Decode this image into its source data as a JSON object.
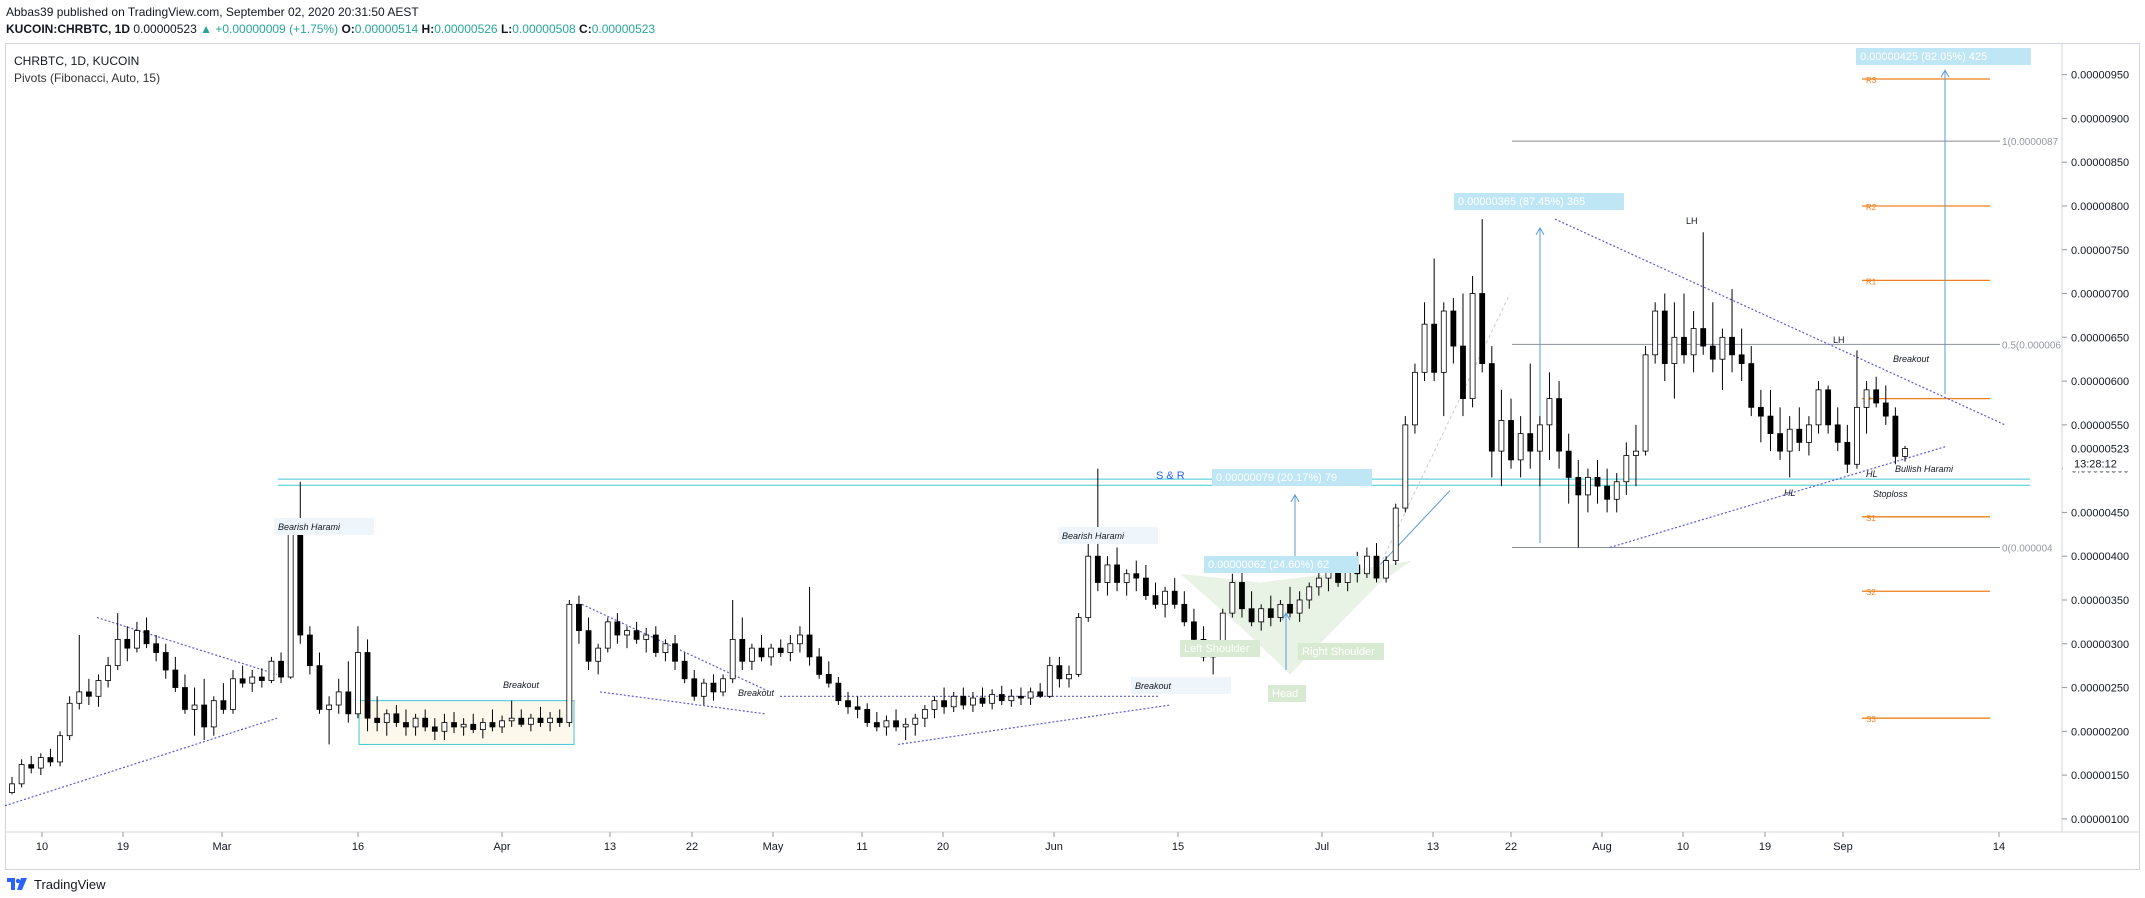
{
  "header": {
    "published": "Abbas39 published on TradingView.com, September 02, 2020 20:31:50 AEST",
    "symbol": "KUCOIN:CHRBTC, 1D",
    "last": "0.00000523",
    "change": "+0.00000009 (+1.75%)",
    "o_label": "O:",
    "o": "0.00000514",
    "h_label": "H:",
    "h": "0.00000526",
    "l_label": "L:",
    "l": "0.00000508",
    "c_label": "C:",
    "c": "0.00000523"
  },
  "legend": {
    "title": "CHRBTC, 1D, KUCOIN",
    "indicator": "Pivots (Fibonacci, Auto, 15)"
  },
  "footer": {
    "brand": "TradingView"
  },
  "colors": {
    "up": "#ffffff",
    "down": "#000000",
    "trendline": "#5b5bd6",
    "pivot": "#ef7f1a",
    "sr": "#3fc9d4",
    "measure": "#5a9bd6",
    "fib": "#8a8e98"
  },
  "chart_data": {
    "type": "candlestick",
    "x_tick_labels": [
      "10",
      "19",
      "Mar",
      "16",
      "Apr",
      "13",
      "22",
      "May",
      "11",
      "20",
      "Jun",
      "15",
      "Jul",
      "13",
      "22",
      "Aug",
      "10",
      "19",
      "Sep",
      "14"
    ],
    "y_tick_labels": [
      "0.00000950",
      "0.00000900",
      "0.00000850",
      "0.00000800",
      "0.00000750",
      "0.00000700",
      "0.00000650",
      "0.00000600",
      "0.00000550",
      "0.00000500",
      "0.00000450",
      "0.00000400",
      "0.00000350",
      "0.00000300",
      "0.00000250",
      "0.00000200",
      "0.00000150",
      "0.00000100"
    ],
    "last_price_label": "0.00000523",
    "countdown_label": "13:28:12",
    "ylim": [
      8.5e-07,
      9.85e-06
    ],
    "pivots": [
      {
        "name": "R3",
        "value": 9.45e-06
      },
      {
        "name": "R2",
        "value": 8e-06
      },
      {
        "name": "R1",
        "value": 7.15e-06
      },
      {
        "name": "P",
        "value": 5.8e-06
      },
      {
        "name": "S1",
        "value": 4.45e-06
      },
      {
        "name": "S2",
        "value": 3.6e-06
      },
      {
        "name": "S3",
        "value": 2.15e-06
      }
    ],
    "fib_levels": [
      {
        "label": "1(0.0000087",
        "value": 8.74e-06
      },
      {
        "label": "0.5(0.000006",
        "value": 6.42e-06
      },
      {
        "label": "0(0.000004",
        "value": 4.1e-06
      }
    ],
    "annotations": [
      "Bearish Harami",
      "Breakout",
      "Breakout",
      "Bearish Harami",
      "Breakout",
      "S & R",
      "0.00000079 (20.17%) 79",
      "0.00000062 (24.60%) 62",
      "Left Shoulder",
      "Right Shoulder",
      "Head",
      "0.00000365 (87.45%) 365",
      "0.00000425 (82.05%) 425",
      "LH",
      "LH",
      "HL",
      "HL",
      "Breakout",
      "Bullish Harami",
      "Stoploss"
    ],
    "candles": [
      [
        1.3e-06,
        1.48e-06,
        1.28e-06,
        1.4e-06
      ],
      [
        1.4e-06,
        1.68e-06,
        1.36e-06,
        1.62e-06
      ],
      [
        1.62e-06,
        1.72e-06,
        1.52e-06,
        1.58e-06
      ],
      [
        1.58e-06,
        1.75e-06,
        1.5e-06,
        1.7e-06
      ],
      [
        1.7e-06,
        1.8e-06,
        1.6e-06,
        1.65e-06
      ],
      [
        1.65e-06,
        2e-06,
        1.6e-06,
        1.95e-06
      ],
      [
        1.95e-06,
        2.4e-06,
        1.9e-06,
        2.32e-06
      ],
      [
        2.32e-06,
        3.1e-06,
        2.25e-06,
        2.45e-06
      ],
      [
        2.45e-06,
        2.6e-06,
        2.3e-06,
        2.4e-06
      ],
      [
        2.4e-06,
        2.65e-06,
        2.28e-06,
        2.58e-06
      ],
      [
        2.58e-06,
        2.85e-06,
        2.5e-06,
        2.75e-06
      ],
      [
        2.75e-06,
        3.35e-06,
        2.7e-06,
        3.05e-06
      ],
      [
        3.05e-06,
        3.2e-06,
        2.8e-06,
        2.95e-06
      ],
      [
        2.95e-06,
        3.25e-06,
        2.9e-06,
        3.15e-06
      ],
      [
        3.15e-06,
        3.3e-06,
        2.95e-06,
        3e-06
      ],
      [
        3e-06,
        3.1e-06,
        2.8e-06,
        2.9e-06
      ],
      [
        2.9e-06,
        3e-06,
        2.6e-06,
        2.7e-06
      ],
      [
        2.7e-06,
        2.85e-06,
        2.45e-06,
        2.5e-06
      ],
      [
        2.5e-06,
        2.65e-06,
        2.2e-06,
        2.25e-06
      ],
      [
        2.25e-06,
        2.5e-06,
        1.95e-06,
        2.3e-06
      ],
      [
        2.3e-06,
        2.6e-06,
        1.9e-06,
        2.05e-06
      ],
      [
        2.05e-06,
        2.4e-06,
        1.95e-06,
        2.35e-06
      ],
      [
        2.35e-06,
        2.55e-06,
        2.2e-06,
        2.25e-06
      ],
      [
        2.25e-06,
        2.7e-06,
        2.2e-06,
        2.6e-06
      ],
      [
        2.6e-06,
        2.75e-06,
        2.5e-06,
        2.55e-06
      ],
      [
        2.55e-06,
        2.7e-06,
        2.45e-06,
        2.62e-06
      ],
      [
        2.62e-06,
        2.72e-06,
        2.5e-06,
        2.58e-06
      ],
      [
        2.58e-06,
        2.85e-06,
        2.55e-06,
        2.8e-06
      ],
      [
        2.8e-06,
        2.9e-06,
        2.55e-06,
        2.62e-06
      ],
      [
        2.62e-06,
        4.35e-06,
        2.6e-06,
        4.3e-06
      ],
      [
        4.3e-06,
        4.85e-06,
        3e-06,
        3.1e-06
      ],
      [
        3.1e-06,
        3.2e-06,
        2.65e-06,
        2.75e-06
      ],
      [
        2.75e-06,
        2.9e-06,
        2.2e-06,
        2.25e-06
      ],
      [
        2.25e-06,
        2.4e-06,
        1.85e-06,
        2.3e-06
      ],
      [
        2.3e-06,
        2.6e-06,
        2.2e-06,
        2.45e-06
      ],
      [
        2.45e-06,
        2.8e-06,
        2.1e-06,
        2.2e-06
      ],
      [
        2.2e-06,
        3.2e-06,
        2.15e-06,
        2.9e-06
      ],
      [
        2.9e-06,
        3.05e-06,
        2e-06,
        2.15e-06
      ],
      [
        2.15e-06,
        2.4e-06,
        2e-06,
        2.1e-06
      ],
      [
        2.1e-06,
        2.25e-06,
        1.95e-06,
        2.2e-06
      ],
      [
        2.2e-06,
        2.3e-06,
        2.05e-06,
        2.1e-06
      ],
      [
        2.1e-06,
        2.25e-06,
        1.95e-06,
        2.05e-06
      ],
      [
        2.05e-06,
        2.2e-06,
        1.95e-06,
        2.15e-06
      ],
      [
        2.15e-06,
        2.25e-06,
        2e-06,
        2.05e-06
      ],
      [
        2.05e-06,
        2.15e-06,
        1.9e-06,
        2e-06
      ],
      [
        2e-06,
        2.2e-06,
        1.9e-06,
        2.1e-06
      ],
      [
        2.1e-06,
        2.22e-06,
        1.98e-06,
        2.05e-06
      ],
      [
        2.05e-06,
        2.15e-06,
        1.95e-06,
        2.08e-06
      ],
      [
        2.08e-06,
        2.2e-06,
        1.98e-06,
        2.02e-06
      ],
      [
        2.02e-06,
        2.15e-06,
        1.92e-06,
        2.1e-06
      ],
      [
        2.1e-06,
        2.25e-06,
        2e-06,
        2.05e-06
      ],
      [
        2.05e-06,
        2.18e-06,
        1.98e-06,
        2.12e-06
      ],
      [
        2.12e-06,
        2.35e-06,
        2.05e-06,
        2.15e-06
      ],
      [
        2.15e-06,
        2.25e-06,
        2.05e-06,
        2.08e-06
      ],
      [
        2.08e-06,
        2.2e-06,
        2e-06,
        2.15e-06
      ],
      [
        2.15e-06,
        2.28e-06,
        2.05e-06,
        2.1e-06
      ],
      [
        2.1e-06,
        2.22e-06,
        2e-06,
        2.15e-06
      ],
      [
        2.15e-06,
        2.25e-06,
        2.05e-06,
        2.1e-06
      ],
      [
        2.1e-06,
        3.5e-06,
        2.05e-06,
        3.45e-06
      ],
      [
        3.45e-06,
        3.55e-06,
        3e-06,
        3.15e-06
      ],
      [
        3.15e-06,
        3.3e-06,
        2.7e-06,
        2.8e-06
      ],
      [
        2.8e-06,
        3e-06,
        2.65e-06,
        2.95e-06
      ],
      [
        2.95e-06,
        3.3e-06,
        2.9e-06,
        3.25e-06
      ],
      [
        3.25e-06,
        3.35e-06,
        3e-06,
        3.1e-06
      ],
      [
        3.1e-06,
        3.2e-06,
        2.95e-06,
        3.15e-06
      ],
      [
        3.15e-06,
        3.25e-06,
        3e-06,
        3.05e-06
      ],
      [
        3.05e-06,
        3.18e-06,
        2.9e-06,
        3.1e-06
      ],
      [
        3.1e-06,
        3.2e-06,
        2.85e-06,
        2.9e-06
      ],
      [
        2.9e-06,
        3.05e-06,
        2.8e-06,
        3e-06
      ],
      [
        3e-06,
        3.1e-06,
        2.7e-06,
        2.8e-06
      ],
      [
        2.8e-06,
        2.9e-06,
        2.55e-06,
        2.6e-06
      ],
      [
        2.6e-06,
        2.7e-06,
        2.35e-06,
        2.4e-06
      ],
      [
        2.4e-06,
        2.6e-06,
        2.3e-06,
        2.55e-06
      ],
      [
        2.55e-06,
        2.65e-06,
        2.35e-06,
        2.45e-06
      ],
      [
        2.45e-06,
        2.65e-06,
        2.4e-06,
        2.6e-06
      ],
      [
        2.6e-06,
        3.5e-06,
        2.55e-06,
        3.05e-06
      ],
      [
        3.05e-06,
        3.3e-06,
        2.7e-06,
        2.8e-06
      ],
      [
        2.8e-06,
        3e-06,
        2.7e-06,
        2.95e-06
      ],
      [
        2.95e-06,
        3.1e-06,
        2.8e-06,
        2.85e-06
      ],
      [
        2.85e-06,
        3e-06,
        2.75e-06,
        2.95e-06
      ],
      [
        2.95e-06,
        3.05e-06,
        2.85e-06,
        2.9e-06
      ],
      [
        2.9e-06,
        3.1e-06,
        2.8e-06,
        3e-06
      ],
      [
        3e-06,
        3.2e-06,
        2.9e-06,
        3.1e-06
      ],
      [
        3.1e-06,
        3.65e-06,
        2.75e-06,
        2.85e-06
      ],
      [
        2.85e-06,
        2.95e-06,
        2.6e-06,
        2.65e-06
      ],
      [
        2.65e-06,
        2.8e-06,
        2.5e-06,
        2.55e-06
      ],
      [
        2.55e-06,
        2.62e-06,
        2.3e-06,
        2.35e-06
      ],
      [
        2.35e-06,
        2.45e-06,
        2.2e-06,
        2.28e-06
      ],
      [
        2.28e-06,
        2.4e-06,
        2.15e-06,
        2.25e-06
      ],
      [
        2.25e-06,
        2.32e-06,
        2.05e-06,
        2.1e-06
      ],
      [
        2.1e-06,
        2.22e-06,
        2e-06,
        2.05e-06
      ],
      [
        2.05e-06,
        2.18e-06,
        1.95e-06,
        2.12e-06
      ],
      [
        2.12e-06,
        2.25e-06,
        2e-06,
        2.05e-06
      ],
      [
        2.05e-06,
        2.15e-06,
        1.9e-06,
        2.08e-06
      ],
      [
        2.08e-06,
        2.2e-06,
        1.95e-06,
        2.15e-06
      ],
      [
        2.15e-06,
        2.3e-06,
        2.05e-06,
        2.25e-06
      ],
      [
        2.25e-06,
        2.4e-06,
        2.15e-06,
        2.35e-06
      ],
      [
        2.35e-06,
        2.5e-06,
        2.2e-06,
        2.28e-06
      ],
      [
        2.28e-06,
        2.45e-06,
        2.22e-06,
        2.4e-06
      ],
      [
        2.4e-06,
        2.5e-06,
        2.25e-06,
        2.3e-06
      ],
      [
        2.3e-06,
        2.45e-06,
        2.22e-06,
        2.38e-06
      ],
      [
        2.38e-06,
        2.5e-06,
        2.28e-06,
        2.32e-06
      ],
      [
        2.32e-06,
        2.48e-06,
        2.25e-06,
        2.42e-06
      ],
      [
        2.42e-06,
        2.52e-06,
        2.3e-06,
        2.35e-06
      ],
      [
        2.35e-06,
        2.48e-06,
        2.28e-06,
        2.4e-06
      ],
      [
        2.4e-06,
        2.5e-06,
        2.3e-06,
        2.38e-06
      ],
      [
        2.38e-06,
        2.5e-06,
        2.3e-06,
        2.45e-06
      ],
      [
        2.45e-06,
        2.55e-06,
        2.38e-06,
        2.4e-06
      ],
      [
        2.4e-06,
        2.85e-06,
        2.38e-06,
        2.75e-06
      ],
      [
        2.75e-06,
        2.85e-06,
        2.5e-06,
        2.6e-06
      ],
      [
        2.6e-06,
        2.75e-06,
        2.5e-06,
        2.65e-06
      ],
      [
        2.65e-06,
        3.35e-06,
        2.62e-06,
        3.3e-06
      ],
      [
        3.3e-06,
        4.15e-06,
        3.25e-06,
        4e-06
      ],
      [
        4e-06,
        5e-06,
        3.6e-06,
        3.7e-06
      ],
      [
        3.7e-06,
        4e-06,
        3.55e-06,
        3.9e-06
      ],
      [
        3.9e-06,
        4.1e-06,
        3.6e-06,
        3.7e-06
      ],
      [
        3.7e-06,
        3.85e-06,
        3.55e-06,
        3.8e-06
      ],
      [
        3.8e-06,
        3.95e-06,
        3.6e-06,
        3.75e-06
      ],
      [
        3.75e-06,
        3.9e-06,
        3.5e-06,
        3.55e-06
      ],
      [
        3.55e-06,
        3.7e-06,
        3.4e-06,
        3.45e-06
      ],
      [
        3.45e-06,
        3.65e-06,
        3.3e-06,
        3.6e-06
      ],
      [
        3.6e-06,
        3.75e-06,
        3.4e-06,
        3.45e-06
      ],
      [
        3.45e-06,
        3.6e-06,
        3.2e-06,
        3.25e-06
      ],
      [
        3.25e-06,
        3.4e-06,
        3e-06,
        3.05e-06
      ],
      [
        3.05e-06,
        3.2e-06,
        2.8e-06,
        2.85e-06
      ],
      [
        2.85e-06,
        3e-06,
        2.65e-06,
        2.9e-06
      ],
      [
        2.9e-06,
        3.4e-06,
        2.85e-06,
        3.35e-06
      ],
      [
        3.35e-06,
        3.8e-06,
        3.3e-06,
        3.7e-06
      ],
      [
        3.7e-06,
        3.85e-06,
        3.3e-06,
        3.4e-06
      ],
      [
        3.4e-06,
        3.6e-06,
        3.2e-06,
        3.25e-06
      ],
      [
        3.25e-06,
        3.45e-06,
        3.15e-06,
        3.4e-06
      ],
      [
        3.4e-06,
        3.55e-06,
        3.2e-06,
        3.3e-06
      ],
      [
        3.3e-06,
        3.5e-06,
        3.25e-06,
        3.45e-06
      ],
      [
        3.45e-06,
        3.65e-06,
        3.3e-06,
        3.35e-06
      ],
      [
        3.35e-06,
        3.6e-06,
        3.25e-06,
        3.5e-06
      ],
      [
        3.5e-06,
        3.7e-06,
        3.4e-06,
        3.65e-06
      ],
      [
        3.65e-06,
        3.85e-06,
        3.55e-06,
        3.75e-06
      ],
      [
        3.75e-06,
        3.9e-06,
        3.6e-06,
        3.85e-06
      ],
      [
        3.85e-06,
        4e-06,
        3.65e-06,
        3.7e-06
      ],
      [
        3.7e-06,
        3.95e-06,
        3.6e-06,
        3.9e-06
      ],
      [
        3.9e-06,
        4.05e-06,
        3.7e-06,
        3.8e-06
      ],
      [
        3.8e-06,
        4.1e-06,
        3.75e-06,
        4e-06
      ],
      [
        4e-06,
        4.15e-06,
        3.7e-06,
        3.75e-06
      ],
      [
        3.75e-06,
        4e-06,
        3.7e-06,
        3.95e-06
      ],
      [
        3.95e-06,
        4.6e-06,
        3.9e-06,
        4.55e-06
      ],
      [
        4.55e-06,
        5.6e-06,
        4.5e-06,
        5.5e-06
      ],
      [
        5.5e-06,
        6.2e-06,
        5.4e-06,
        6.1e-06
      ],
      [
        6.1e-06,
        6.9e-06,
        6e-06,
        6.65e-06
      ],
      [
        6.65e-06,
        7.4e-06,
        6e-06,
        6.1e-06
      ],
      [
        6.1e-06,
        6.9e-06,
        5.6e-06,
        6.8e-06
      ],
      [
        6.8e-06,
        6.95e-06,
        6.2e-06,
        6.4e-06
      ],
      [
        6.4e-06,
        7e-06,
        5.6e-06,
        5.8e-06
      ],
      [
        5.8e-06,
        7.2e-06,
        5.7e-06,
        7e-06
      ],
      [
        7e-06,
        7.85e-06,
        6.1e-06,
        6.2e-06
      ],
      [
        6.2e-06,
        6.4e-06,
        4.9e-06,
        5.2e-06
      ],
      [
        5.2e-06,
        5.9e-06,
        4.8e-06,
        5.55e-06
      ],
      [
        5.55e-06,
        5.8e-06,
        5e-06,
        5.1e-06
      ],
      [
        5.1e-06,
        5.6e-06,
        4.9e-06,
        5.4e-06
      ],
      [
        5.4e-06,
        6.2e-06,
        5e-06,
        5.2e-06
      ],
      [
        5.2e-06,
        5.6e-06,
        4.8e-06,
        5.5e-06
      ],
      [
        5.5e-06,
        6.1e-06,
        5.1e-06,
        5.8e-06
      ],
      [
        5.8e-06,
        6e-06,
        5e-06,
        5.2e-06
      ],
      [
        5.2e-06,
        5.4e-06,
        4.6e-06,
        4.9e-06
      ],
      [
        4.9e-06,
        5.1e-06,
        4.1e-06,
        4.7e-06
      ],
      [
        4.7e-06,
        5e-06,
        4.5e-06,
        4.9e-06
      ],
      [
        4.9e-06,
        5.1e-06,
        4.6e-06,
        4.8e-06
      ],
      [
        4.8e-06,
        5e-06,
        4.5e-06,
        4.65e-06
      ],
      [
        4.65e-06,
        4.95e-06,
        4.5e-06,
        4.85e-06
      ],
      [
        4.85e-06,
        5.3e-06,
        4.7e-06,
        5.15e-06
      ],
      [
        5.15e-06,
        5.5e-06,
        4.8e-06,
        5.2e-06
      ],
      [
        5.2e-06,
        6.4e-06,
        5.15e-06,
        6.3e-06
      ],
      [
        6.3e-06,
        6.9e-06,
        6.2e-06,
        6.8e-06
      ],
      [
        6.8e-06,
        7e-06,
        6e-06,
        6.2e-06
      ],
      [
        6.2e-06,
        6.9e-06,
        5.8e-06,
        6.5e-06
      ],
      [
        6.5e-06,
        7e-06,
        6.2e-06,
        6.3e-06
      ],
      [
        6.3e-06,
        6.8e-06,
        6.1e-06,
        6.6e-06
      ],
      [
        6.6e-06,
        7.7e-06,
        6.3e-06,
        6.4e-06
      ],
      [
        6.4e-06,
        6.9e-06,
        6.1e-06,
        6.25e-06
      ],
      [
        6.25e-06,
        6.6e-06,
        5.9e-06,
        6.5e-06
      ],
      [
        6.5e-06,
        7.05e-06,
        6.1e-06,
        6.3e-06
      ],
      [
        6.3e-06,
        6.6e-06,
        6e-06,
        6.2e-06
      ],
      [
        6.2e-06,
        6.4e-06,
        5.6e-06,
        5.7e-06
      ],
      [
        5.7e-06,
        5.9e-06,
        5.3e-06,
        5.6e-06
      ],
      [
        5.6e-06,
        5.9e-06,
        5.2e-06,
        5.4e-06
      ],
      [
        5.4e-06,
        5.7e-06,
        5.1e-06,
        5.2e-06
      ],
      [
        5.2e-06,
        5.6e-06,
        4.9e-06,
        5.45e-06
      ],
      [
        5.45e-06,
        5.7e-06,
        5.2e-06,
        5.3e-06
      ],
      [
        5.3e-06,
        5.6e-06,
        5.15e-06,
        5.5e-06
      ],
      [
        5.5e-06,
        6e-06,
        5.4e-06,
        5.9e-06
      ],
      [
        5.9e-06,
        5.95e-06,
        5.4e-06,
        5.5e-06
      ],
      [
        5.5e-06,
        5.7e-06,
        5.2e-06,
        5.3e-06
      ],
      [
        5.3e-06,
        5.5e-06,
        4.95e-06,
        5.05e-06
      ],
      [
        5.05e-06,
        6.35e-06,
        5e-06,
        5.7e-06
      ],
      [
        5.7e-06,
        6e-06,
        5.4e-06,
        5.9e-06
      ],
      [
        5.9e-06,
        6.05e-06,
        5.7e-06,
        5.75e-06
      ],
      [
        5.75e-06,
        5.95e-06,
        5.5e-06,
        5.6e-06
      ],
      [
        5.6e-06,
        5.7e-06,
        5.05e-06,
        5.14e-06
      ],
      [
        5.14e-06,
        5.26e-06,
        5.08e-06,
        5.23e-06
      ]
    ]
  }
}
